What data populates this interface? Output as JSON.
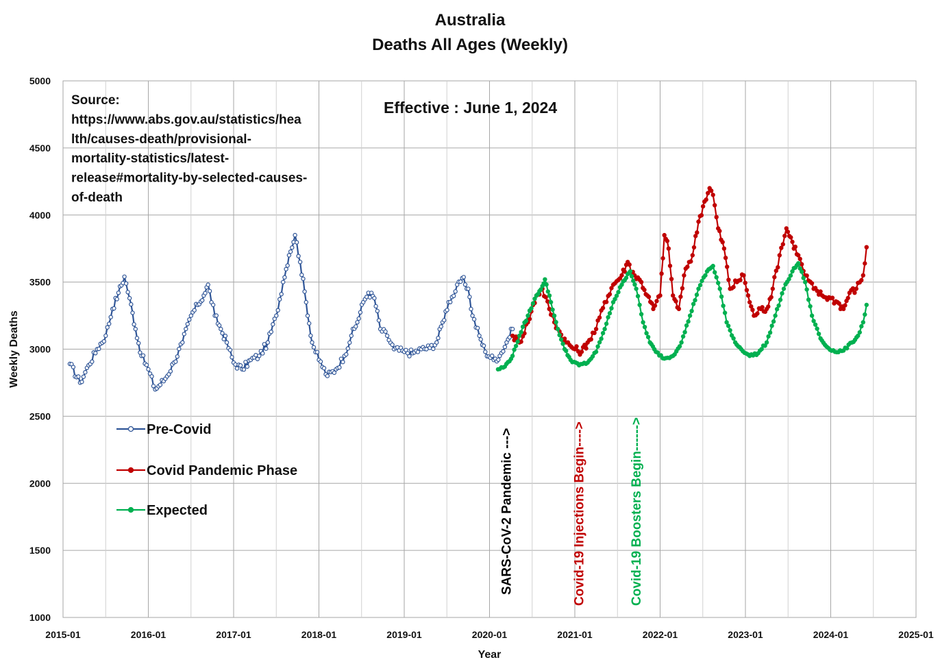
{
  "chart_data": {
    "type": "line",
    "title": "Australia",
    "subtitle": "Deaths All Ages (Weekly)",
    "xlabel": "Year",
    "ylabel": "Weekly Deaths",
    "ylim": [
      1000,
      5000
    ],
    "y_ticks": [
      "1000",
      "1500",
      "2000",
      "2500",
      "3000",
      "3500",
      "4000",
      "4500",
      "5000"
    ],
    "x_range": [
      2015.0,
      2025.0
    ],
    "x_ticks": [
      "2015-01",
      "2016-01",
      "2017-01",
      "2018-01",
      "2019-01",
      "2020-01",
      "2021-01",
      "2022-01",
      "2023-01",
      "2024-01",
      "2025-01"
    ],
    "grid": true,
    "legend_position": "bottom-left",
    "source_text": [
      "Source:",
      "https://www.abs.gov.au/statistics/hea",
      "lth/causes-death/provisional-",
      "mortality-statistics/latest-",
      "release#mortality-by-selected-causes-",
      "of-death"
    ],
    "effective_text": "Effective : June 1, 2024",
    "annotations": [
      {
        "text": "SARS-CoV-2 Pandemic --->",
        "x": 2020.25,
        "color": "#000000"
      },
      {
        "text": "Covid-19 Injections Begin---->",
        "x": 2021.1,
        "color": "#c00000"
      },
      {
        "text": "Covid-19 Boosters Begin------>",
        "x": 2021.77,
        "color": "#00b050"
      }
    ],
    "series": [
      {
        "name": "Pre-Covid",
        "color": "#2f5597",
        "marker": "circle-open",
        "points": [
          [
            2015.08,
            2890
          ],
          [
            2015.2,
            2750
          ],
          [
            2015.3,
            2880
          ],
          [
            2015.4,
            3000
          ],
          [
            2015.5,
            3100
          ],
          [
            2015.58,
            3300
          ],
          [
            2015.65,
            3420
          ],
          [
            2015.72,
            3540
          ],
          [
            2015.78,
            3380
          ],
          [
            2015.85,
            3150
          ],
          [
            2015.92,
            2950
          ],
          [
            2016.0,
            2850
          ],
          [
            2016.08,
            2700
          ],
          [
            2016.2,
            2780
          ],
          [
            2016.3,
            2900
          ],
          [
            2016.4,
            3050
          ],
          [
            2016.5,
            3250
          ],
          [
            2016.58,
            3330
          ],
          [
            2016.65,
            3400
          ],
          [
            2016.7,
            3480
          ],
          [
            2016.78,
            3250
          ],
          [
            2016.85,
            3150
          ],
          [
            2016.92,
            3050
          ],
          [
            2017.0,
            2900
          ],
          [
            2017.1,
            2850
          ],
          [
            2017.2,
            2920
          ],
          [
            2017.3,
            2950
          ],
          [
            2017.4,
            3050
          ],
          [
            2017.5,
            3250
          ],
          [
            2017.58,
            3500
          ],
          [
            2017.65,
            3700
          ],
          [
            2017.72,
            3850
          ],
          [
            2017.78,
            3650
          ],
          [
            2017.85,
            3350
          ],
          [
            2017.92,
            3050
          ],
          [
            2018.0,
            2920
          ],
          [
            2018.1,
            2800
          ],
          [
            2018.2,
            2850
          ],
          [
            2018.3,
            2950
          ],
          [
            2018.38,
            3100
          ],
          [
            2018.45,
            3200
          ],
          [
            2018.52,
            3350
          ],
          [
            2018.58,
            3420
          ],
          [
            2018.65,
            3380
          ],
          [
            2018.72,
            3150
          ],
          [
            2018.8,
            3100
          ],
          [
            2018.88,
            3000
          ],
          [
            2019.0,
            2980
          ],
          [
            2019.1,
            2970
          ],
          [
            2019.2,
            3000
          ],
          [
            2019.3,
            3010
          ],
          [
            2019.38,
            3050
          ],
          [
            2019.45,
            3200
          ],
          [
            2019.52,
            3350
          ],
          [
            2019.6,
            3430
          ],
          [
            2019.68,
            3530
          ],
          [
            2019.75,
            3450
          ],
          [
            2019.8,
            3250
          ],
          [
            2019.88,
            3100
          ],
          [
            2019.95,
            2980
          ],
          [
            2020.05,
            2920
          ],
          [
            2020.12,
            2950
          ],
          [
            2020.2,
            3050
          ],
          [
            2020.27,
            3150
          ]
        ]
      },
      {
        "name": "Covid Pandemic Phase",
        "color": "#c00000",
        "marker": "circle-filled",
        "points": [
          [
            2020.27,
            3100
          ],
          [
            2020.35,
            3050
          ],
          [
            2020.45,
            3200
          ],
          [
            2020.55,
            3400
          ],
          [
            2020.62,
            3450
          ],
          [
            2020.7,
            3300
          ],
          [
            2020.8,
            3150
          ],
          [
            2020.9,
            3050
          ],
          [
            2021.0,
            3000
          ],
          [
            2021.08,
            2980
          ],
          [
            2021.15,
            3050
          ],
          [
            2021.25,
            3150
          ],
          [
            2021.35,
            3350
          ],
          [
            2021.45,
            3480
          ],
          [
            2021.55,
            3550
          ],
          [
            2021.62,
            3650
          ],
          [
            2021.7,
            3550
          ],
          [
            2021.78,
            3500
          ],
          [
            2021.85,
            3400
          ],
          [
            2021.92,
            3300
          ],
          [
            2022.0,
            3400
          ],
          [
            2022.05,
            3850
          ],
          [
            2022.1,
            3750
          ],
          [
            2022.15,
            3400
          ],
          [
            2022.22,
            3300
          ],
          [
            2022.3,
            3600
          ],
          [
            2022.38,
            3700
          ],
          [
            2022.45,
            3950
          ],
          [
            2022.52,
            4100
          ],
          [
            2022.58,
            4200
          ],
          [
            2022.62,
            4150
          ],
          [
            2022.68,
            3900
          ],
          [
            2022.75,
            3750
          ],
          [
            2022.82,
            3450
          ],
          [
            2022.9,
            3500
          ],
          [
            2022.98,
            3550
          ],
          [
            2023.05,
            3350
          ],
          [
            2023.1,
            3250
          ],
          [
            2023.18,
            3300
          ],
          [
            2023.25,
            3300
          ],
          [
            2023.32,
            3450
          ],
          [
            2023.4,
            3700
          ],
          [
            2023.48,
            3900
          ],
          [
            2023.55,
            3800
          ],
          [
            2023.62,
            3700
          ],
          [
            2023.7,
            3550
          ],
          [
            2023.8,
            3450
          ],
          [
            2023.9,
            3400
          ],
          [
            2024.0,
            3380
          ],
          [
            2024.08,
            3350
          ],
          [
            2024.15,
            3300
          ],
          [
            2024.22,
            3420
          ],
          [
            2024.3,
            3450
          ],
          [
            2024.38,
            3550
          ],
          [
            2024.42,
            3760
          ]
        ]
      },
      {
        "name": "Expected",
        "color": "#00b050",
        "marker": "circle-filled",
        "points": [
          [
            2020.1,
            2850
          ],
          [
            2020.18,
            2870
          ],
          [
            2020.27,
            2950
          ],
          [
            2020.35,
            3100
          ],
          [
            2020.45,
            3250
          ],
          [
            2020.55,
            3400
          ],
          [
            2020.62,
            3470
          ],
          [
            2020.65,
            3520
          ],
          [
            2020.72,
            3350
          ],
          [
            2020.8,
            3150
          ],
          [
            2020.88,
            3000
          ],
          [
            2020.95,
            2920
          ],
          [
            2021.05,
            2880
          ],
          [
            2021.15,
            2900
          ],
          [
            2021.25,
            2980
          ],
          [
            2021.35,
            3150
          ],
          [
            2021.45,
            3350
          ],
          [
            2021.55,
            3480
          ],
          [
            2021.62,
            3560
          ],
          [
            2021.65,
            3580
          ],
          [
            2021.72,
            3450
          ],
          [
            2021.8,
            3200
          ],
          [
            2021.88,
            3050
          ],
          [
            2021.95,
            2980
          ],
          [
            2022.05,
            2930
          ],
          [
            2022.15,
            2950
          ],
          [
            2022.25,
            3050
          ],
          [
            2022.35,
            3250
          ],
          [
            2022.45,
            3450
          ],
          [
            2022.55,
            3580
          ],
          [
            2022.62,
            3620
          ],
          [
            2022.7,
            3450
          ],
          [
            2022.78,
            3200
          ],
          [
            2022.88,
            3050
          ],
          [
            2022.95,
            3000
          ],
          [
            2023.05,
            2950
          ],
          [
            2023.15,
            2970
          ],
          [
            2023.25,
            3050
          ],
          [
            2023.35,
            3250
          ],
          [
            2023.45,
            3450
          ],
          [
            2023.55,
            3580
          ],
          [
            2023.62,
            3640
          ],
          [
            2023.7,
            3500
          ],
          [
            2023.78,
            3250
          ],
          [
            2023.88,
            3080
          ],
          [
            2023.95,
            3020
          ],
          [
            2024.05,
            2980
          ],
          [
            2024.15,
            2990
          ],
          [
            2024.25,
            3050
          ],
          [
            2024.32,
            3100
          ],
          [
            2024.38,
            3200
          ],
          [
            2024.42,
            3330
          ]
        ]
      }
    ]
  }
}
